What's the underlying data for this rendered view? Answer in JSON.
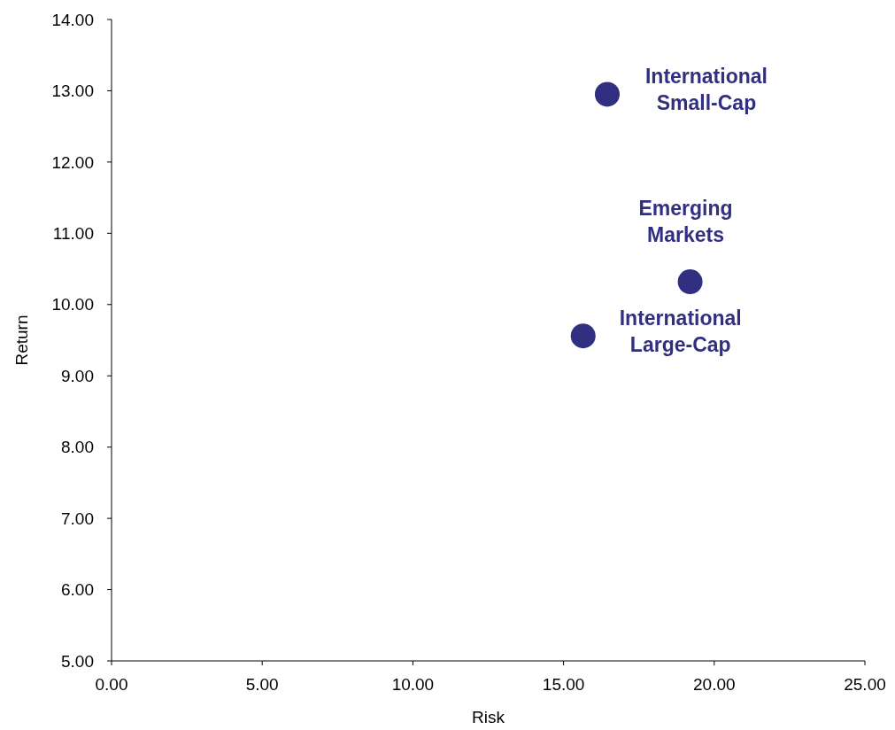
{
  "chart_data": {
    "type": "scatter",
    "xlabel": "Risk",
    "ylabel": "Return",
    "xlim": [
      0,
      25
    ],
    "ylim": [
      5,
      14
    ],
    "xticks": [
      {
        "value": 0,
        "label": "0.00"
      },
      {
        "value": 5,
        "label": "5.00"
      },
      {
        "value": 10,
        "label": "10.00"
      },
      {
        "value": 15,
        "label": "15.00"
      },
      {
        "value": 20,
        "label": "20.00"
      },
      {
        "value": 25,
        "label": "25.00"
      }
    ],
    "yticks": [
      {
        "value": 5,
        "label": "5.00"
      },
      {
        "value": 6,
        "label": "6.00"
      },
      {
        "value": 7,
        "label": "7.00"
      },
      {
        "value": 8,
        "label": "8.00"
      },
      {
        "value": 9,
        "label": "9.00"
      },
      {
        "value": 10,
        "label": "10.00"
      },
      {
        "value": 11,
        "label": "11.00"
      },
      {
        "value": 12,
        "label": "12.00"
      },
      {
        "value": 13,
        "label": "13.00"
      },
      {
        "value": 14,
        "label": "14.00"
      }
    ],
    "marker": "circle",
    "legend": false,
    "grid": false,
    "series": [
      {
        "name": "International Small-Cap",
        "color": "#312f7f",
        "x": [
          16.45
        ],
        "values": [
          12.95
        ]
      },
      {
        "name": "Emerging Markets",
        "color": "#312f7f",
        "x": [
          19.2
        ],
        "values": [
          10.32
        ]
      },
      {
        "name": "International Large-Cap",
        "color": "#312f7f",
        "x": [
          15.65
        ],
        "values": [
          9.56
        ]
      }
    ]
  }
}
